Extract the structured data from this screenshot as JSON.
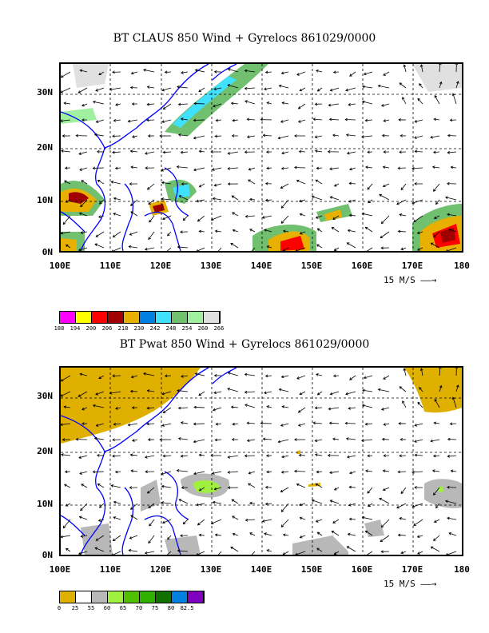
{
  "panel1": {
    "title": "BT CLAUS 850 Wind + Gyrelocs 861029/0000",
    "lat_labels": [
      "30N",
      "20N",
      "10N",
      "0N"
    ],
    "lon_labels": [
      "100E",
      "110E",
      "120E",
      "130E",
      "140E",
      "150E",
      "160E",
      "170E",
      "180"
    ],
    "scale_label": "15 M/S",
    "colorbar_colors": [
      "#ff00ff",
      "#ffff00",
      "#ff0000",
      "#a00000",
      "#e8b000",
      "#0080e0",
      "#40e0ff",
      "#70c070",
      "#a0f0a0",
      "#e0e0e0"
    ],
    "colorbar_labels": [
      "188",
      "194",
      "200",
      "206",
      "218",
      "230",
      "242",
      "248",
      "254",
      "260",
      "266"
    ]
  },
  "panel2": {
    "title": "BT Pwat 850 Wind + Gyrelocs 861029/0000",
    "lat_labels": [
      "30N",
      "20N",
      "10N",
      "0N"
    ],
    "lon_labels": [
      "100E",
      "110E",
      "120E",
      "130E",
      "140E",
      "150E",
      "160E",
      "170E",
      "180"
    ],
    "scale_label": "15 M/S",
    "colorbar_colors": [
      "#e0b000",
      "#ffffff",
      "#b8b8b8",
      "#a0f040",
      "#50c000",
      "#30b000",
      "#107000",
      "#0080e0",
      "#8000c0"
    ],
    "colorbar_labels": [
      "0",
      "25",
      "55",
      "60",
      "65",
      "70",
      "75",
      "80",
      "82.5"
    ]
  },
  "colors": {
    "coast": "#0000ff",
    "grid": "#000000"
  }
}
